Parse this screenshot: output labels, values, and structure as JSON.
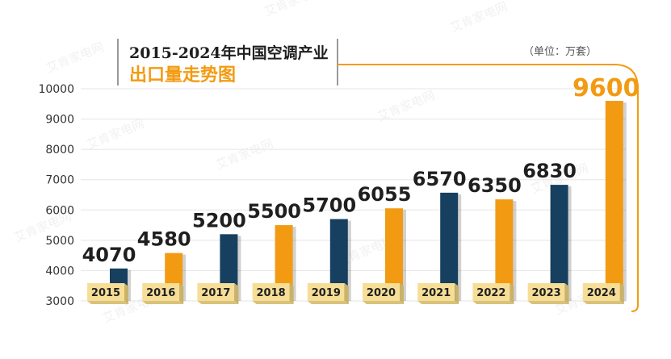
{
  "chart_data": {
    "type": "bar",
    "title_line1": "2015-2024年中国空调产业",
    "title_line2": "出口量走势图",
    "unit_label": "（单位：万套）",
    "categories": [
      "2015",
      "2016",
      "2017",
      "2018",
      "2019",
      "2020",
      "2021",
      "2022",
      "2023",
      "2024"
    ],
    "values": [
      4070,
      4580,
      5200,
      5500,
      5700,
      6055,
      6570,
      6350,
      6830,
      9600
    ],
    "value_labels": [
      "4070",
      "4580",
      "5200",
      "5500",
      "5700",
      "6055",
      "6570",
      "6350",
      "6830",
      "9600"
    ],
    "y_ticks": [
      "10000",
      "9000",
      "8000",
      "7000",
      "6000",
      "5000",
      "4000",
      "3000"
    ],
    "ylim": [
      3000,
      10000
    ],
    "grid": true,
    "colors": {
      "navy": "#173F5F",
      "orange": "#F29B12",
      "label_box": "#F7DE97",
      "grid": "#E5E5E5",
      "title": "#1F1F1F",
      "accent_line": "#F29B12"
    },
    "bar_colors": [
      "navy",
      "orange",
      "navy",
      "orange",
      "navy",
      "orange",
      "navy",
      "orange",
      "navy",
      "orange"
    ]
  },
  "watermark": "艾肯家电网"
}
